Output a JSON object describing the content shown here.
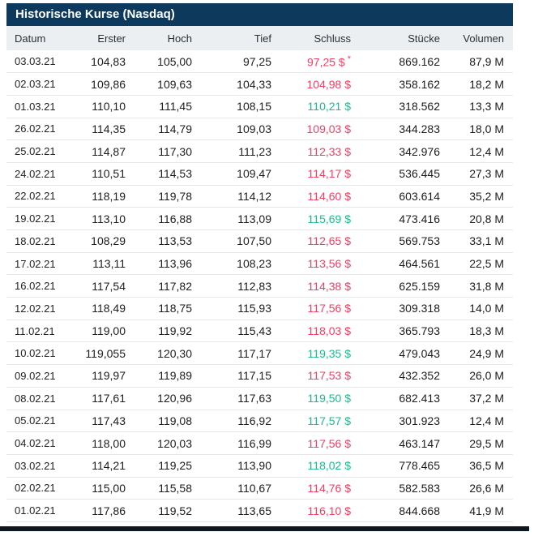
{
  "title": "Historische Kurse (Nasdaq)",
  "columns": [
    "Datum",
    "Erster",
    "Hoch",
    "Tief",
    "Schluss",
    "Stücke",
    "Volumen"
  ],
  "colors": {
    "title_bar": "#0d3a5c",
    "header_row_bg": "#ebeff2",
    "positive": "#17bd8f",
    "negative": "#f43d61",
    "row_divider": "#e7e7e7",
    "bottom_bar": "#10181f"
  },
  "rows": [
    {
      "datum": "03.03.21",
      "erster": "104,83",
      "hoch": "105,00",
      "tief": "97,25",
      "schluss": "97,25 $",
      "schluss_note": "*",
      "trend": "down",
      "stuecke": "869.162",
      "volumen": "87,9 M"
    },
    {
      "datum": "02.03.21",
      "erster": "109,86",
      "hoch": "109,63",
      "tief": "104,33",
      "schluss": "104,98 $",
      "trend": "down",
      "stuecke": "358.162",
      "volumen": "18,2 M"
    },
    {
      "datum": "01.03.21",
      "erster": "110,10",
      "hoch": "111,45",
      "tief": "108,15",
      "schluss": "110,21 $",
      "trend": "up",
      "stuecke": "318.562",
      "volumen": "13,3 M"
    },
    {
      "datum": "26.02.21",
      "erster": "114,35",
      "hoch": "114,79",
      "tief": "109,03",
      "schluss": "109,03 $",
      "trend": "down",
      "stuecke": "344.283",
      "volumen": "18,0 M"
    },
    {
      "datum": "25.02.21",
      "erster": "114,87",
      "hoch": "117,30",
      "tief": "111,23",
      "schluss": "112,33 $",
      "trend": "down",
      "stuecke": "342.976",
      "volumen": "12,4 M"
    },
    {
      "datum": "24.02.21",
      "erster": "110,51",
      "hoch": "114,53",
      "tief": "109,47",
      "schluss": "114,17 $",
      "trend": "down",
      "stuecke": "536.445",
      "volumen": "27,3 M"
    },
    {
      "datum": "22.02.21",
      "erster": "118,19",
      "hoch": "119,78",
      "tief": "114,12",
      "schluss": "114,60 $",
      "trend": "down",
      "stuecke": "603.614",
      "volumen": "35,2 M"
    },
    {
      "datum": "19.02.21",
      "erster": "113,10",
      "hoch": "116,88",
      "tief": "113,09",
      "schluss": "115,69 $",
      "trend": "up",
      "stuecke": "473.416",
      "volumen": "20,8 M"
    },
    {
      "datum": "18.02.21",
      "erster": "108,29",
      "hoch": "113,53",
      "tief": "107,50",
      "schluss": "112,65 $",
      "trend": "down",
      "stuecke": "569.753",
      "volumen": "33,1 M"
    },
    {
      "datum": "17.02.21",
      "erster": "113,11",
      "hoch": "113,96",
      "tief": "108,23",
      "schluss": "113,56 $",
      "trend": "down",
      "stuecke": "464.561",
      "volumen": "22,5 M"
    },
    {
      "datum": "16.02.21",
      "erster": "117,54",
      "hoch": "117,82",
      "tief": "112,83",
      "schluss": "114,38 $",
      "trend": "down",
      "stuecke": "625.159",
      "volumen": "31,8 M"
    },
    {
      "datum": "12.02.21",
      "erster": "118,49",
      "hoch": "118,75",
      "tief": "115,93",
      "schluss": "117,56 $",
      "trend": "down",
      "stuecke": "309.318",
      "volumen": "14,0 M"
    },
    {
      "datum": "11.02.21",
      "erster": "119,00",
      "hoch": "119,92",
      "tief": "115,43",
      "schluss": "118,03 $",
      "trend": "down",
      "stuecke": "365.793",
      "volumen": "18,3 M"
    },
    {
      "datum": "10.02.21",
      "erster": "119,055",
      "hoch": "120,30",
      "tief": "117,17",
      "schluss": "119,35 $",
      "trend": "up",
      "stuecke": "479.043",
      "volumen": "24,9 M"
    },
    {
      "datum": "09.02.21",
      "erster": "119,97",
      "hoch": "119,89",
      "tief": "117,15",
      "schluss": "117,53 $",
      "trend": "down",
      "stuecke": "432.352",
      "volumen": "26,0 M"
    },
    {
      "datum": "08.02.21",
      "erster": "117,61",
      "hoch": "120,96",
      "tief": "117,63",
      "schluss": "119,50 $",
      "trend": "up",
      "stuecke": "682.413",
      "volumen": "37,2 M"
    },
    {
      "datum": "05.02.21",
      "erster": "117,43",
      "hoch": "119,08",
      "tief": "116,92",
      "schluss": "117,57 $",
      "trend": "up",
      "stuecke": "301.923",
      "volumen": "12,4 M"
    },
    {
      "datum": "04.02.21",
      "erster": "118,00",
      "hoch": "120,03",
      "tief": "116,99",
      "schluss": "117,56 $",
      "trend": "down",
      "stuecke": "463.147",
      "volumen": "29,5 M"
    },
    {
      "datum": "03.02.21",
      "erster": "114,21",
      "hoch": "119,25",
      "tief": "113,90",
      "schluss": "118,02 $",
      "trend": "up",
      "stuecke": "778.465",
      "volumen": "36,5 M"
    },
    {
      "datum": "02.02.21",
      "erster": "115,00",
      "hoch": "115,58",
      "tief": "110,67",
      "schluss": "114,76 $",
      "trend": "down",
      "stuecke": "582.583",
      "volumen": "26,6 M"
    },
    {
      "datum": "01.02.21",
      "erster": "117,86",
      "hoch": "119,52",
      "tief": "113,65",
      "schluss": "116,10 $",
      "trend": "down",
      "stuecke": "844.668",
      "volumen": "41,9 M"
    }
  ]
}
